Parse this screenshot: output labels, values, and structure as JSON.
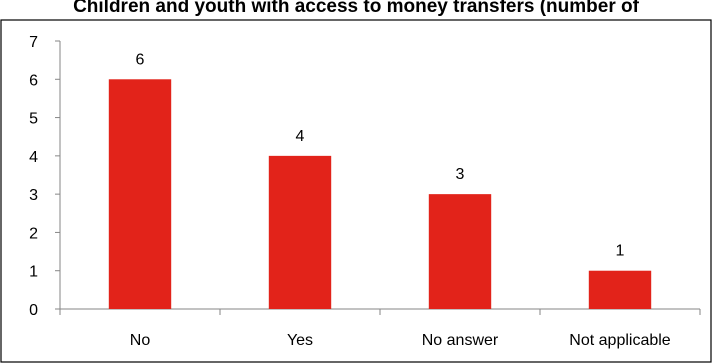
{
  "chart_data": {
    "type": "bar",
    "title": "Children and youth with access to money transfers (number of",
    "categories": [
      "No",
      "Yes",
      "No answer",
      "Not applicable"
    ],
    "values": [
      6,
      4,
      3,
      1
    ],
    "data_labels": [
      "6",
      "4",
      "3",
      "1"
    ],
    "xlabel": "",
    "ylabel": "",
    "ylim": [
      0,
      7
    ],
    "yticks": [
      0,
      1,
      2,
      3,
      4,
      5,
      6,
      7
    ],
    "grid": false,
    "legend": "none",
    "colors": {
      "bar": "#E2231A",
      "axis": "#868686",
      "frame": "#000000"
    }
  }
}
